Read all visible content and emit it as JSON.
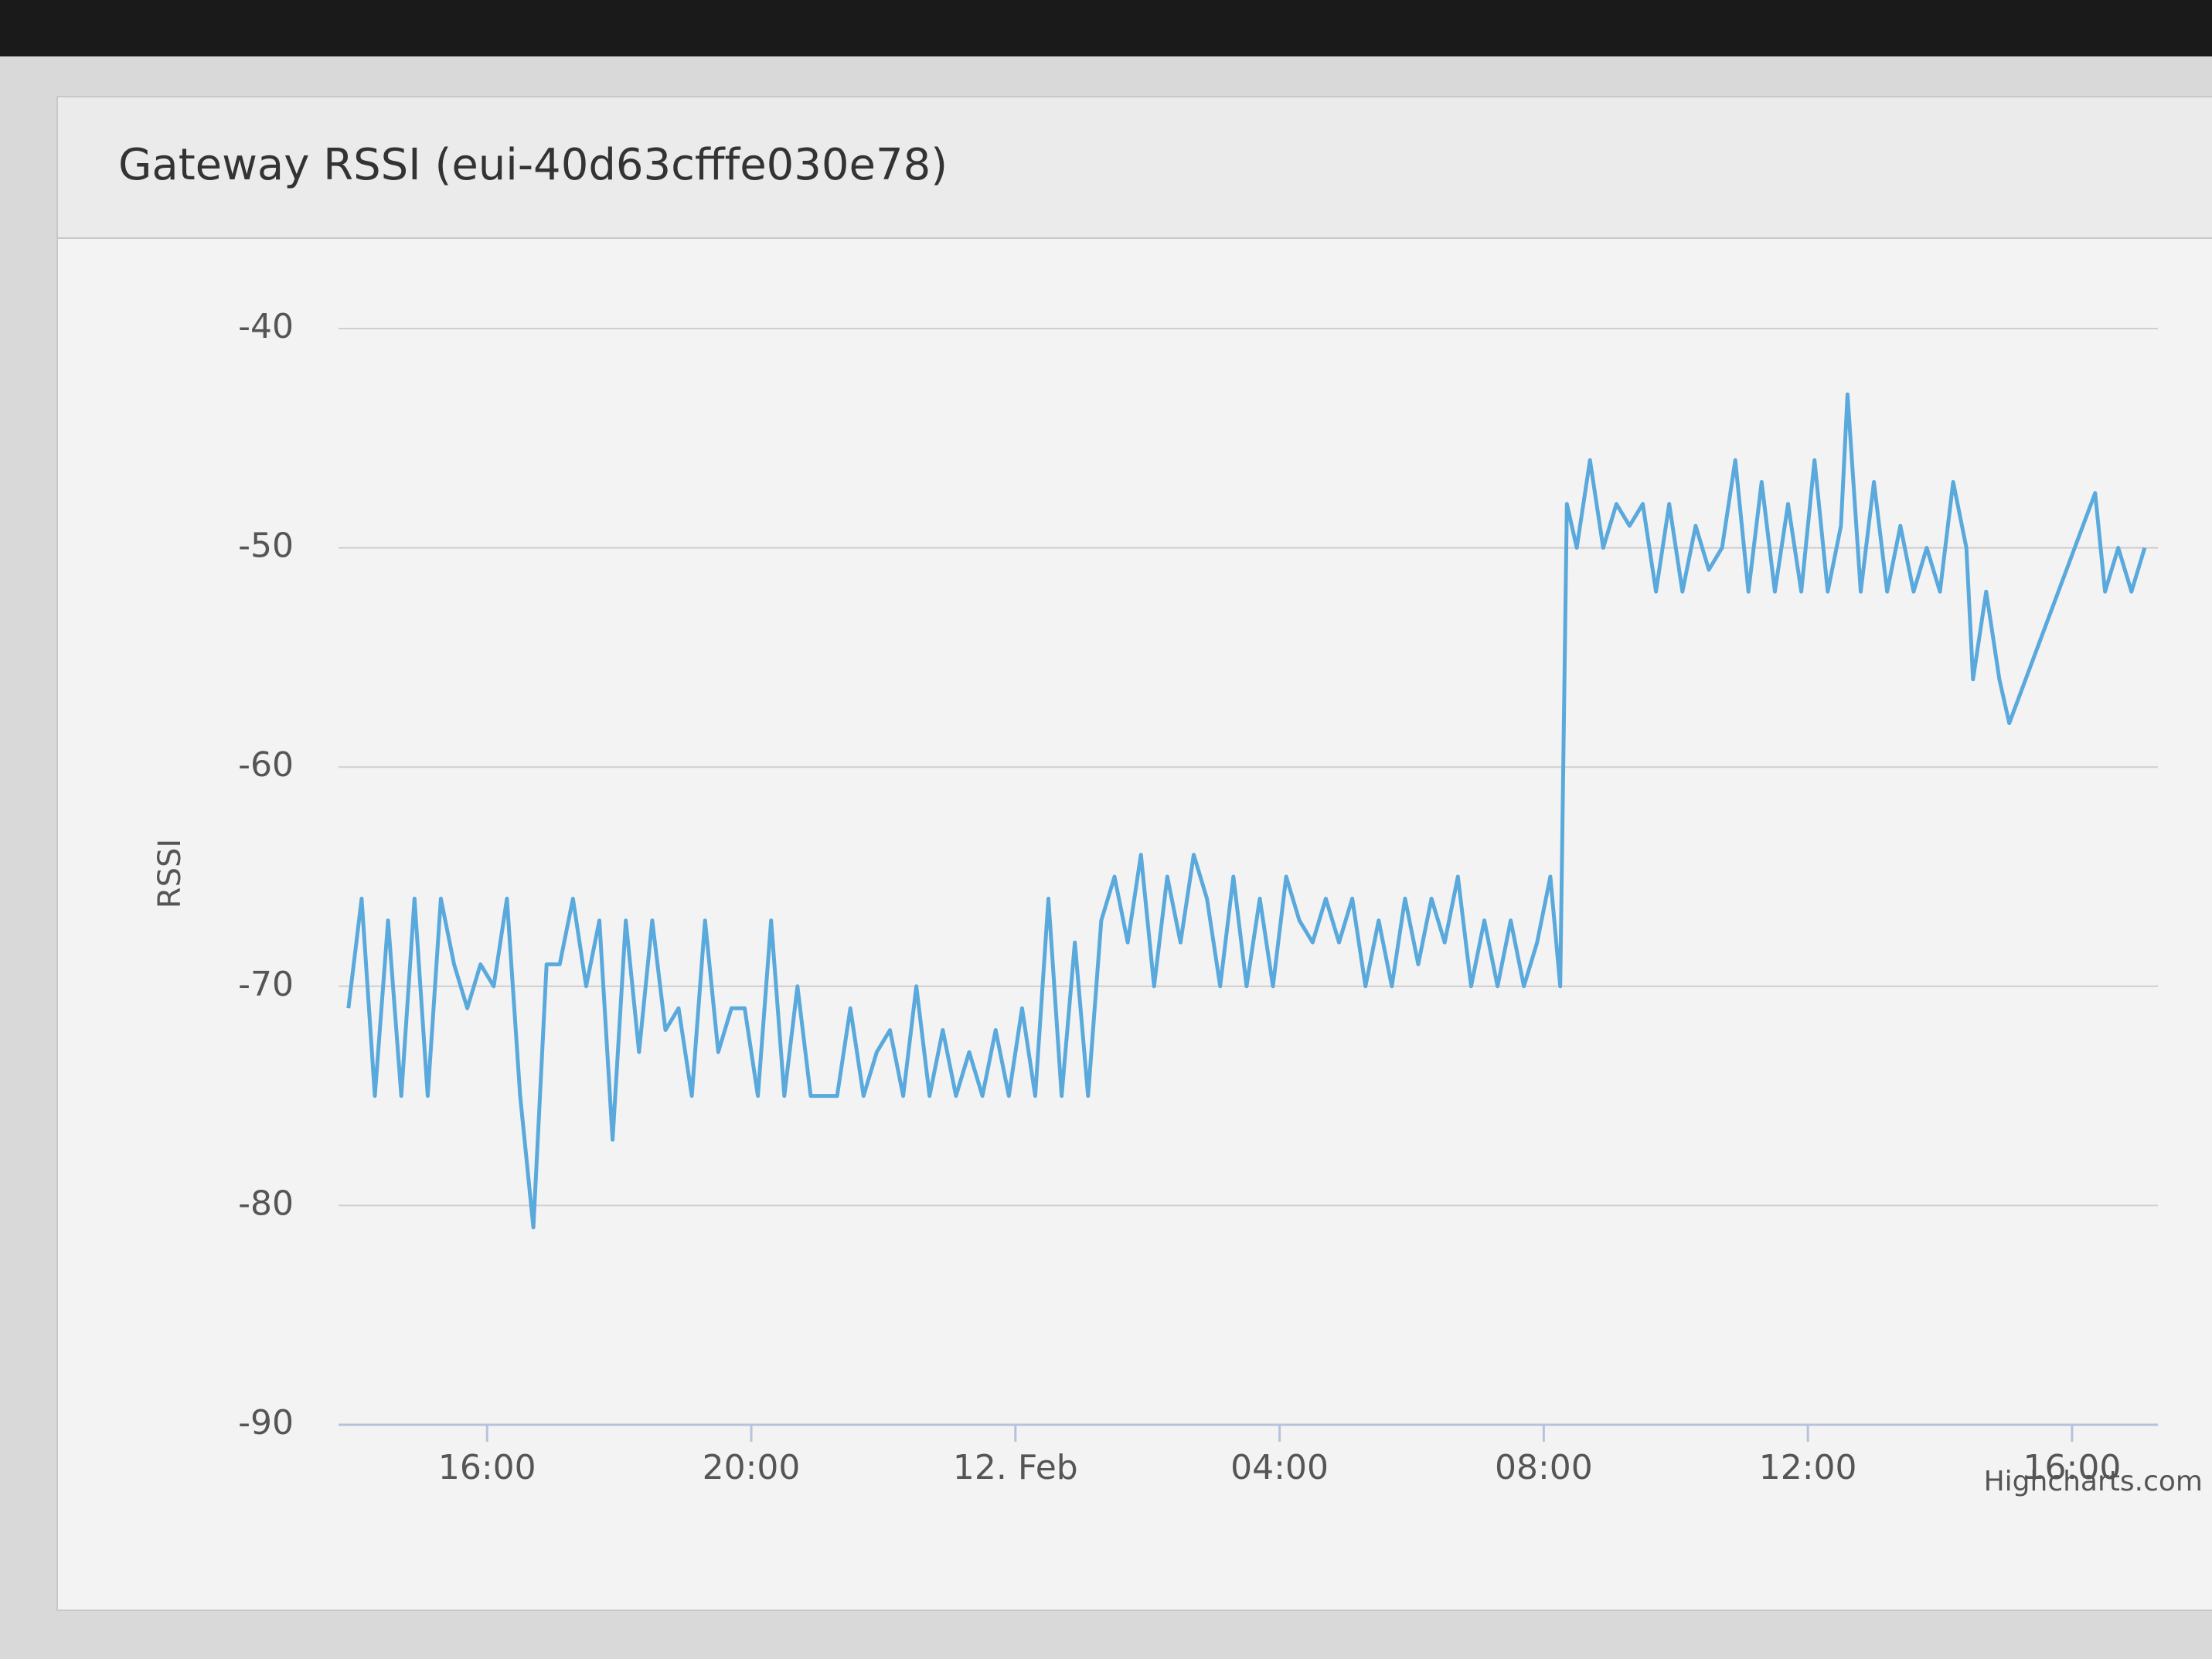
{
  "chart_data": {
    "type": "line",
    "title": "Gateway RSSI (eui-40d63cfffe030e78)",
    "y_label": "RSSI",
    "credits": "Highcharts.com",
    "x": [
      13.9,
      14.1,
      14.3,
      14.5,
      14.7,
      14.9,
      15.1,
      15.3,
      15.5,
      15.7,
      15.9,
      16.1,
      16.3,
      16.5,
      16.7,
      16.9,
      17.1,
      17.3,
      17.5,
      17.7,
      17.9,
      18.1,
      18.3,
      18.5,
      18.7,
      18.9,
      19.1,
      19.3,
      19.5,
      19.7,
      19.9,
      20.1,
      20.3,
      20.5,
      20.7,
      20.9,
      21.1,
      21.3,
      21.5,
      21.7,
      21.9,
      22.1,
      22.3,
      22.5,
      22.7,
      22.9,
      23.1,
      23.3,
      23.5,
      23.7,
      23.9,
      24.1,
      24.3,
      24.5,
      24.7,
      24.9,
      25.1,
      25.3,
      25.5,
      25.7,
      25.9,
      26.1,
      26.3,
      26.5,
      26.7,
      26.9,
      27.1,
      27.3,
      27.5,
      27.7,
      27.9,
      28.1,
      28.3,
      28.5,
      28.7,
      28.9,
      29.1,
      29.3,
      29.5,
      29.7,
      29.9,
      30.1,
      30.3,
      30.5,
      30.7,
      30.9,
      31.1,
      31.3,
      31.5,
      31.7,
      31.9,
      32.1,
      32.25,
      32.35,
      32.5,
      32.7,
      32.9,
      33.1,
      33.3,
      33.5,
      33.7,
      33.9,
      34.1,
      34.3,
      34.5,
      34.7,
      34.9,
      35.1,
      35.3,
      35.5,
      35.7,
      35.9,
      36.1,
      36.3,
      36.5,
      36.6,
      36.8,
      37.0,
      37.2,
      37.4,
      37.6,
      37.8,
      38.0,
      38.2,
      38.4,
      38.5,
      38.7,
      38.9,
      39.05,
      40.35,
      40.5,
      40.7,
      40.9,
      41.1
    ],
    "series": [
      {
        "name": "RSSI",
        "color": "#5aa9dc",
        "values": [
          -71,
          -66,
          -75,
          -67,
          -75,
          -66,
          -75,
          -66,
          -69,
          -71,
          -69,
          -70,
          -66,
          -75,
          -81,
          -69,
          -69,
          -66,
          -70,
          -67,
          -77,
          -67,
          -73,
          -67,
          -72,
          -71,
          -75,
          -67,
          -73,
          -71,
          -71,
          -75,
          -67,
          -75,
          -70,
          -75,
          -75,
          -75,
          -71,
          -75,
          -73,
          -72,
          -75,
          -70,
          -75,
          -72,
          -75,
          -73,
          -75,
          -72,
          -75,
          -71,
          -75,
          -66,
          -75,
          -68,
          -75,
          -67,
          -65,
          -68,
          -64,
          -70,
          -65,
          -68,
          -64,
          -66,
          -70,
          -65,
          -70,
          -66,
          -70,
          -65,
          -67,
          -68,
          -66,
          -68,
          -66,
          -70,
          -67,
          -70,
          -66,
          -69,
          -66,
          -68,
          -65,
          -70,
          -67,
          -70,
          -67,
          -70,
          -68,
          -65,
          -70,
          -48,
          -50,
          -46,
          -50,
          -48,
          -49,
          -48,
          -52,
          -48,
          -52,
          -49,
          -51,
          -50,
          -46,
          -52,
          -47,
          -52,
          -48,
          -52,
          -46,
          -52,
          -49,
          -43,
          -52,
          -47,
          -52,
          -49,
          -52,
          -50,
          -52,
          -47,
          -50,
          -56,
          -52,
          -56,
          -58,
          -47.5,
          -52,
          -50,
          -52,
          -50
        ]
      }
    ],
    "xlim": [
      13.75,
      41.3
    ],
    "xticks": [
      {
        "value": 16,
        "label": "16:00"
      },
      {
        "value": 20,
        "label": "20:00"
      },
      {
        "value": 24,
        "label": "12. Feb"
      },
      {
        "value": 28,
        "label": "04:00"
      },
      {
        "value": 32,
        "label": "08:00"
      },
      {
        "value": 36,
        "label": "12:00"
      },
      {
        "value": 40,
        "label": "16:00"
      }
    ],
    "ylim": [
      -90,
      -40
    ],
    "yticks": [
      -90,
      -80,
      -70,
      -60,
      -50,
      -40
    ],
    "grid": true
  }
}
